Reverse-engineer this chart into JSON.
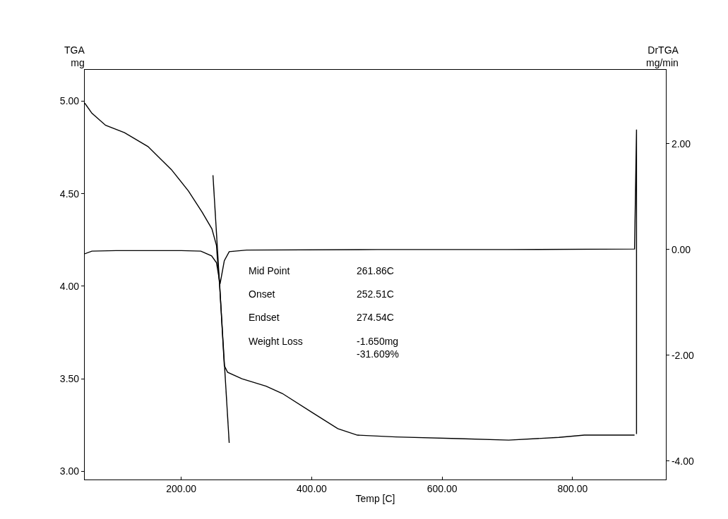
{
  "chart_data": {
    "type": "line",
    "xlabel": "Temp [C]",
    "ylabel": "TGA\nmg",
    "y2label": "DrTGA\nmg/min",
    "xlim": [
      52,
      943
    ],
    "xticks": [
      {
        "value": 200,
        "label": "200.00"
      },
      {
        "value": 400,
        "label": "400.00"
      },
      {
        "value": 600,
        "label": "600.00"
      },
      {
        "value": 800,
        "label": "800.00"
      }
    ],
    "ylim": [
      2.955,
      5.17
    ],
    "yticks": [
      {
        "value": 3,
        "label": "3.00"
      },
      {
        "value": 3.5,
        "label": "3.50"
      },
      {
        "value": 4,
        "label": "4.00"
      },
      {
        "value": 4.5,
        "label": "4.50"
      },
      {
        "value": 5,
        "label": "5.00"
      }
    ],
    "y2lim": [
      -4.35,
      3.4
    ],
    "y2ticks": [
      {
        "value": -4,
        "label": "-4.00"
      },
      {
        "value": -2,
        "label": "-2.00"
      },
      {
        "value": 0,
        "label": "0.00"
      },
      {
        "value": 2,
        "label": "2.00"
      }
    ],
    "marker": "none",
    "line_style": "solid",
    "series": [
      {
        "color": "#000000",
        "x": [
          52,
          63,
          84,
          113,
          149,
          185,
          211,
          232,
          247,
          254,
          256,
          259,
          266,
          271,
          293,
          330,
          355,
          401,
          440,
          470,
          529,
          625,
          702,
          779,
          818,
          895
        ],
        "values": [
          4.99,
          4.935,
          4.87,
          4.83,
          4.755,
          4.63,
          4.515,
          4.4,
          4.31,
          4.22,
          4.12,
          4.0,
          3.57,
          3.535,
          3.5,
          3.46,
          3.42,
          3.317,
          3.23,
          3.195,
          3.185,
          3.176,
          3.168,
          3.183,
          3.195,
          3.195
        ]
      },
      {
        "color": "#000000",
        "axis": "y2",
        "x": [
          52,
          63,
          100,
          200,
          230,
          246.5,
          254,
          259.5,
          266,
          273.5,
          300.5,
          500,
          700,
          895,
          898,
          898
        ],
        "values": [
          -0.08,
          -0.03,
          -0.02,
          -0.02,
          -0.03,
          -0.12,
          -0.25,
          -0.65,
          -0.21,
          -0.04,
          -0.01,
          0.0,
          0.0,
          0.01,
          2.27,
          -3.49
        ]
      },
      {
        "color": "#000000",
        "x": [
          248.6,
          273.5
        ],
        "values": [
          4.6,
          3.153
        ]
      }
    ],
    "annotations": [
      "Mid Point",
      "261.86C",
      "Onset",
      "252.51C",
      "Endset",
      "274.54C",
      "Weight Loss",
      "-1.650mg",
      "-31.609%"
    ]
  }
}
